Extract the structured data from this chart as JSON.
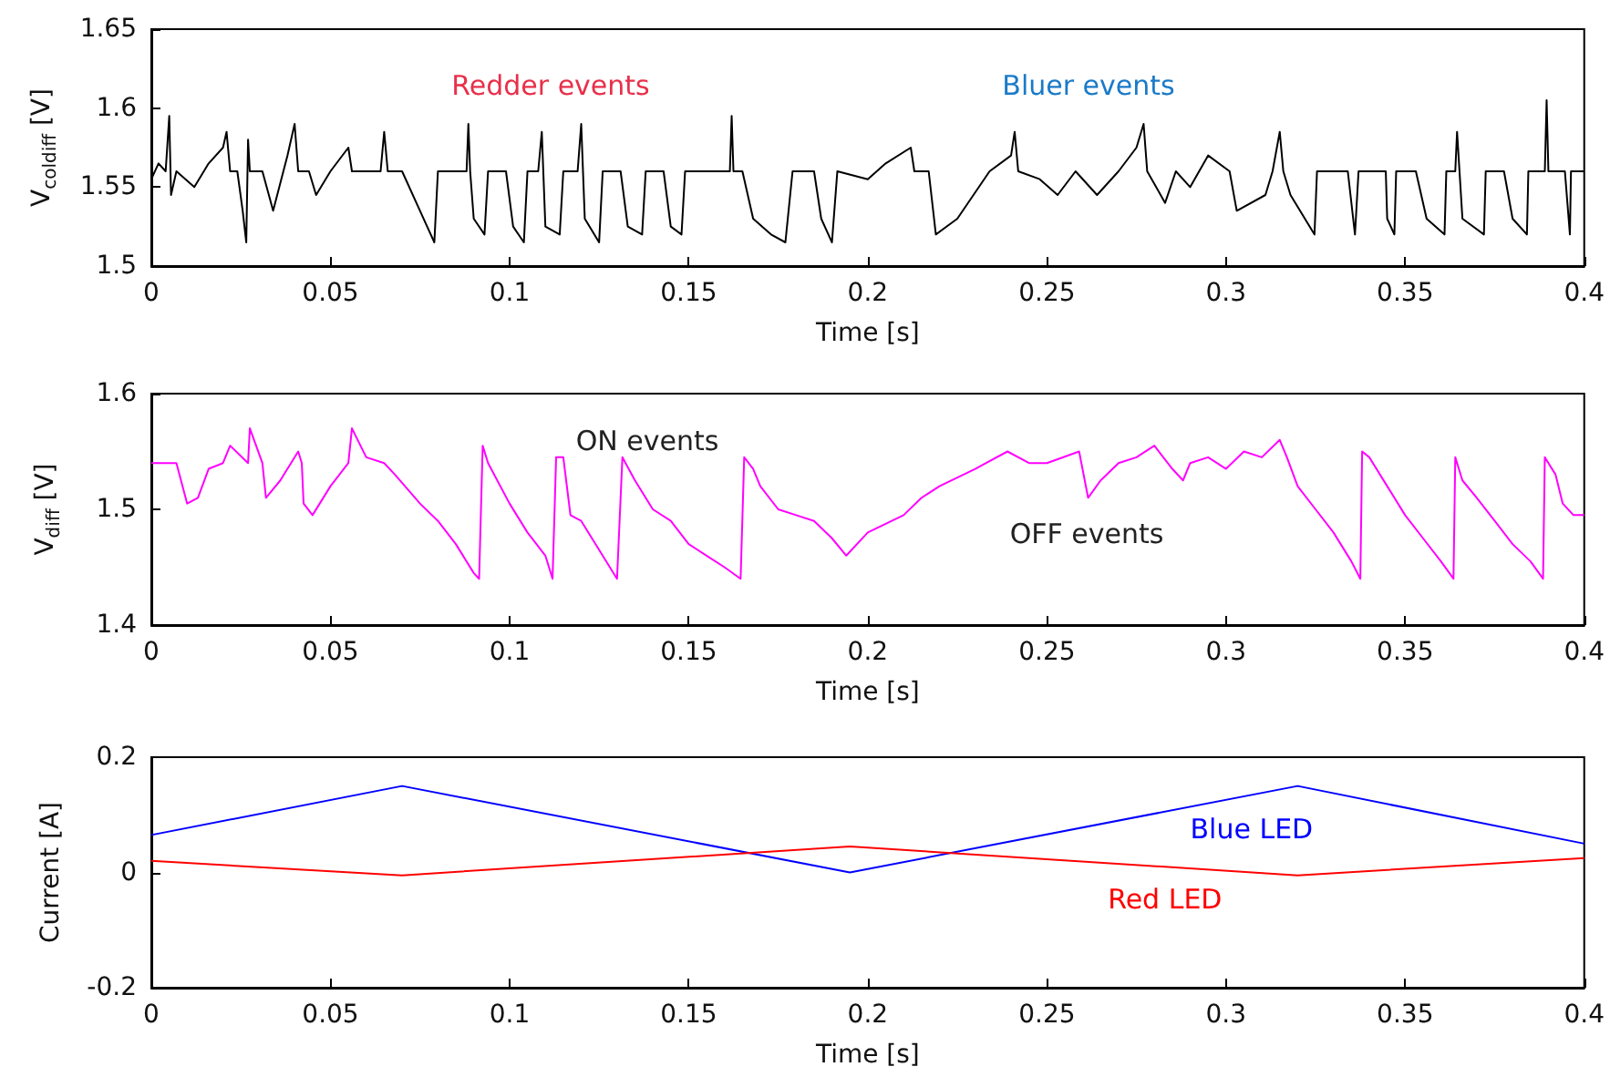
{
  "chart_data": [
    {
      "type": "line",
      "ylabel": "V$_{coldiff}$ [V]",
      "xlabel": "Time [s]",
      "annotations": [
        "Redder events",
        "Bluer events"
      ],
      "xlim": [
        0,
        0.4
      ],
      "xticks": [
        0,
        0.05,
        0.1,
        0.15,
        0.2,
        0.25,
        0.3,
        0.35,
        0.4
      ],
      "ylim": [
        1.5,
        1.65
      ],
      "yticks": [
        1.5,
        1.55,
        1.6,
        1.65
      ],
      "grid": false,
      "legend": false,
      "marker": "none",
      "line_style": "solid",
      "series": [
        {
          "color": "#000000",
          "x": [
            0,
            0.002,
            0.004,
            0.005,
            0.0055,
            0.007,
            0.012,
            0.016,
            0.02,
            0.021,
            0.022,
            0.024,
            0.0255,
            0.0265,
            0.027,
            0.0275,
            0.031,
            0.034,
            0.038,
            0.04,
            0.041,
            0.044,
            0.046,
            0.05,
            0.055,
            0.056,
            0.064,
            0.065,
            0.066,
            0.07,
            0.075,
            0.079,
            0.08,
            0.088,
            0.0885,
            0.089,
            0.09,
            0.093,
            0.094,
            0.099,
            0.101,
            0.104,
            0.105,
            0.108,
            0.109,
            0.11,
            0.114,
            0.115,
            0.119,
            0.12,
            0.121,
            0.125,
            0.126,
            0.131,
            0.133,
            0.137,
            0.138,
            0.143,
            0.145,
            0.148,
            0.149,
            0.1615,
            0.162,
            0.1625,
            0.165,
            0.168,
            0.173,
            0.177,
            0.179,
            0.185,
            0.187,
            0.19,
            0.1915,
            0.2,
            0.205,
            0.212,
            0.213,
            0.217,
            0.219,
            0.225,
            0.234,
            0.24,
            0.241,
            0.242,
            0.248,
            0.253,
            0.258,
            0.264,
            0.27,
            0.275,
            0.277,
            0.278,
            0.283,
            0.286,
            0.29,
            0.295,
            0.301,
            0.303,
            0.311,
            0.313,
            0.315,
            0.316,
            0.318,
            0.3247,
            0.3254,
            0.334,
            0.336,
            0.337,
            0.3446,
            0.345,
            0.347,
            0.3475,
            0.353,
            0.356,
            0.361,
            0.3615,
            0.364,
            0.3645,
            0.366,
            0.372,
            0.3725,
            0.3776,
            0.38,
            0.384,
            0.3844,
            0.389,
            0.3895,
            0.39,
            0.3946,
            0.396,
            0.3963,
            0.4
          ],
          "values": [
            1.555,
            1.565,
            1.56,
            1.595,
            1.545,
            1.56,
            1.55,
            1.565,
            1.575,
            1.585,
            1.56,
            1.56,
            1.535,
            1.515,
            1.58,
            1.56,
            1.56,
            1.535,
            1.57,
            1.59,
            1.56,
            1.56,
            1.545,
            1.56,
            1.575,
            1.56,
            1.56,
            1.585,
            1.56,
            1.56,
            1.535,
            1.515,
            1.56,
            1.56,
            1.59,
            1.56,
            1.53,
            1.52,
            1.56,
            1.56,
            1.525,
            1.515,
            1.56,
            1.56,
            1.585,
            1.525,
            1.52,
            1.56,
            1.56,
            1.59,
            1.53,
            1.515,
            1.56,
            1.56,
            1.525,
            1.52,
            1.56,
            1.56,
            1.525,
            1.52,
            1.56,
            1.56,
            1.595,
            1.56,
            1.56,
            1.53,
            1.52,
            1.515,
            1.56,
            1.56,
            1.53,
            1.515,
            1.56,
            1.555,
            1.565,
            1.575,
            1.56,
            1.56,
            1.52,
            1.53,
            1.56,
            1.57,
            1.585,
            1.56,
            1.555,
            1.545,
            1.56,
            1.545,
            1.56,
            1.575,
            1.59,
            1.56,
            1.54,
            1.56,
            1.55,
            1.57,
            1.56,
            1.535,
            1.545,
            1.56,
            1.585,
            1.56,
            1.545,
            1.52,
            1.56,
            1.56,
            1.52,
            1.56,
            1.56,
            1.53,
            1.52,
            1.56,
            1.56,
            1.53,
            1.52,
            1.56,
            1.56,
            1.585,
            1.53,
            1.52,
            1.56,
            1.56,
            1.53,
            1.52,
            1.56,
            1.56,
            1.605,
            1.56,
            1.56,
            1.52,
            1.56,
            1.56
          ]
        }
      ]
    },
    {
      "type": "line",
      "ylabel": "V$_{diff}$ [V]",
      "xlabel": "Time [s]",
      "annotations": [
        "ON events",
        "OFF events"
      ],
      "xlim": [
        0,
        0.4
      ],
      "xticks": [
        0,
        0.05,
        0.1,
        0.15,
        0.2,
        0.25,
        0.3,
        0.35,
        0.4
      ],
      "ylim": [
        1.4,
        1.6
      ],
      "yticks": [
        1.4,
        1.5,
        1.6
      ],
      "grid": false,
      "legend": false,
      "marker": "none",
      "line_style": "solid",
      "series": [
        {
          "color": "#ff00ff",
          "x": [
            0,
            0.007,
            0.01,
            0.013,
            0.016,
            0.02,
            0.022,
            0.027,
            0.0275,
            0.031,
            0.032,
            0.036,
            0.038,
            0.041,
            0.042,
            0.0425,
            0.045,
            0.05,
            0.055,
            0.056,
            0.06,
            0.065,
            0.068,
            0.075,
            0.08,
            0.085,
            0.09,
            0.0915,
            0.0925,
            0.094,
            0.1,
            0.105,
            0.11,
            0.112,
            0.113,
            0.115,
            0.117,
            0.12,
            0.125,
            0.13,
            0.1315,
            0.135,
            0.14,
            0.145,
            0.15,
            0.155,
            0.16,
            0.1645,
            0.1655,
            0.168,
            0.17,
            0.175,
            0.18,
            0.185,
            0.19,
            0.194,
            0.2,
            0.21,
            0.215,
            0.22,
            0.23,
            0.239,
            0.245,
            0.25,
            0.259,
            0.2615,
            0.265,
            0.27,
            0.275,
            0.28,
            0.285,
            0.288,
            0.29,
            0.295,
            0.3,
            0.305,
            0.31,
            0.315,
            0.317,
            0.32,
            0.325,
            0.33,
            0.335,
            0.3375,
            0.338,
            0.34,
            0.345,
            0.35,
            0.355,
            0.36,
            0.3635,
            0.364,
            0.366,
            0.37,
            0.375,
            0.38,
            0.385,
            0.3885,
            0.389,
            0.392,
            0.394,
            0.397,
            0.4
          ],
          "values": [
            1.54,
            1.54,
            1.505,
            1.51,
            1.535,
            1.54,
            1.555,
            1.54,
            1.57,
            1.54,
            1.51,
            1.525,
            1.535,
            1.55,
            1.54,
            1.505,
            1.495,
            1.52,
            1.54,
            1.57,
            1.545,
            1.54,
            1.53,
            1.505,
            1.49,
            1.47,
            1.445,
            1.44,
            1.555,
            1.54,
            1.505,
            1.48,
            1.46,
            1.44,
            1.545,
            1.545,
            1.495,
            1.49,
            1.465,
            1.44,
            1.545,
            1.525,
            1.5,
            1.49,
            1.47,
            1.46,
            1.45,
            1.44,
            1.545,
            1.535,
            1.52,
            1.5,
            1.495,
            1.49,
            1.475,
            1.46,
            1.48,
            1.495,
            1.51,
            1.52,
            1.535,
            1.55,
            1.54,
            1.54,
            1.55,
            1.51,
            1.525,
            1.54,
            1.545,
            1.555,
            1.535,
            1.525,
            1.54,
            1.545,
            1.535,
            1.55,
            1.545,
            1.56,
            1.545,
            1.52,
            1.5,
            1.48,
            1.455,
            1.44,
            1.55,
            1.545,
            1.52,
            1.495,
            1.475,
            1.455,
            1.44,
            1.545,
            1.525,
            1.51,
            1.49,
            1.47,
            1.455,
            1.44,
            1.545,
            1.53,
            1.505,
            1.495,
            1.495
          ]
        }
      ]
    },
    {
      "type": "line",
      "ylabel": "Current [A]",
      "xlabel": "Time [s]",
      "xlim": [
        0,
        0.4
      ],
      "xticks": [
        0,
        0.05,
        0.1,
        0.15,
        0.2,
        0.25,
        0.3,
        0.35,
        0.4
      ],
      "ylim": [
        -0.2,
        0.2
      ],
      "yticks": [
        -0.2,
        0,
        0.2
      ],
      "grid": false,
      "legend": false,
      "marker": "none",
      "line_style": "solid",
      "series": [
        {
          "name": "Blue LED",
          "color": "#0000ff",
          "x": [
            0,
            0.07,
            0.195,
            0.32,
            0.4
          ],
          "values": [
            0.065,
            0.15,
            0,
            0.15,
            0.05
          ]
        },
        {
          "name": "Red LED",
          "color": "#ff0000",
          "x": [
            0,
            0.07,
            0.195,
            0.32,
            0.4
          ],
          "values": [
            0.02,
            -0.005,
            0.045,
            -0.005,
            0.025
          ]
        }
      ]
    }
  ]
}
